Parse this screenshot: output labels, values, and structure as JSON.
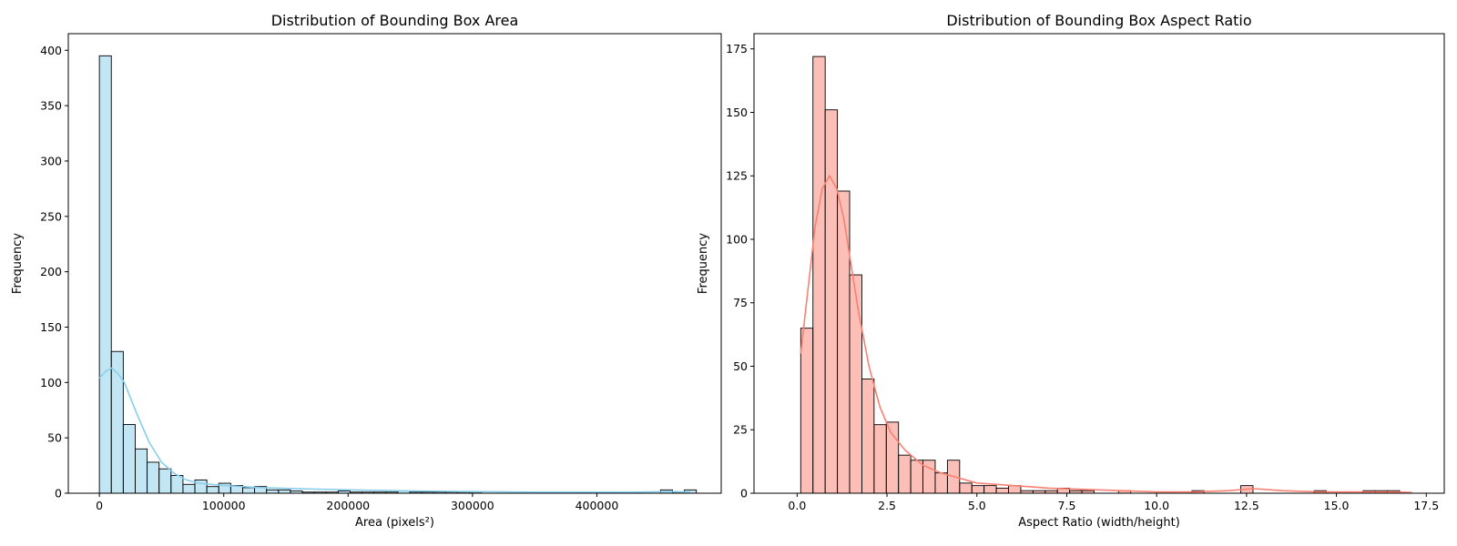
{
  "chart_data": [
    {
      "type": "histogram",
      "title": "Distribution of Bounding Box Area",
      "xlabel": "Area (pixels²)",
      "ylabel": "Frequency",
      "xlim": [
        -25000,
        500000
      ],
      "ylim": [
        0,
        415
      ],
      "xticks": [
        0,
        100000,
        200000,
        300000,
        400000
      ],
      "xtick_labels": [
        "0",
        "100000",
        "200000",
        "300000",
        "400000"
      ],
      "yticks": [
        0,
        50,
        100,
        150,
        200,
        250,
        300,
        350,
        400
      ],
      "ytick_labels": [
        "0",
        "50",
        "100",
        "150",
        "200",
        "250",
        "300",
        "350",
        "400"
      ],
      "bar_color": "#87ceeb",
      "kde_color": "#87ceeb",
      "bin_edges": [
        0,
        9600,
        19200,
        28800,
        38400,
        48000,
        57600,
        67200,
        76800,
        86400,
        96000,
        105600,
        115200,
        124800,
        134400,
        144000,
        153600,
        163200,
        172800,
        182400,
        192000,
        201600,
        211200,
        220800,
        230400,
        240000,
        249600,
        259200,
        268800,
        278400,
        288000,
        297600,
        307200,
        316800,
        326400,
        336000,
        345600,
        355200,
        364800,
        374400,
        384000,
        393600,
        403200,
        412800,
        422400,
        432000,
        441600,
        451200,
        460800,
        470400,
        480000
      ],
      "counts": [
        395,
        128,
        62,
        40,
        28,
        22,
        16,
        8,
        12,
        6,
        9,
        7,
        5,
        6,
        3,
        3,
        2,
        1,
        1,
        1,
        2,
        1,
        1,
        1,
        1,
        2,
        1,
        1,
        1,
        1,
        1,
        1,
        0,
        0,
        0,
        0,
        0,
        0,
        0,
        1,
        0,
        0,
        0,
        1,
        0,
        0,
        0,
        3,
        1,
        3
      ],
      "kde": {
        "x": [
          0,
          5000,
          10000,
          15000,
          20000,
          30000,
          40000,
          50000,
          60000,
          70000,
          80000,
          100000,
          130000,
          160000,
          200000,
          250000,
          300000,
          350000,
          400000,
          430000,
          460000,
          475000
        ],
        "y": [
          104,
          110,
          113,
          108,
          100,
          72,
          46,
          28,
          18,
          12,
          9,
          7,
          5,
          4,
          3,
          2,
          1.5,
          1,
          1,
          1,
          1.5,
          1
        ]
      }
    },
    {
      "type": "histogram",
      "title": "Distribution of Bounding Box Aspect Ratio",
      "xlabel": "Aspect Ratio (width/height)",
      "ylabel": "Frequency",
      "xlim": [
        -1.2,
        18.0
      ],
      "ylim": [
        0,
        181
      ],
      "xticks": [
        0,
        2.5,
        5,
        7.5,
        10,
        12.5,
        15,
        17.5
      ],
      "xtick_labels": [
        "0.0",
        "2.5",
        "5.0",
        "7.5",
        "10.0",
        "12.5",
        "15.0",
        "17.5"
      ],
      "yticks": [
        0,
        25,
        50,
        75,
        100,
        125,
        150,
        175
      ],
      "ytick_labels": [
        "0",
        "25",
        "50",
        "75",
        "100",
        "125",
        "150",
        "175"
      ],
      "bar_color": "#fa8072",
      "kde_color": "#fa8072",
      "bin_edges": [
        0.1,
        0.44,
        0.78,
        1.12,
        1.46,
        1.8,
        2.14,
        2.48,
        2.82,
        3.16,
        3.5,
        3.84,
        4.18,
        4.52,
        4.86,
        5.2,
        5.54,
        5.88,
        6.22,
        6.56,
        6.9,
        7.24,
        7.58,
        7.92,
        8.26,
        8.6,
        8.94,
        9.28,
        9.62,
        9.96,
        10.3,
        10.64,
        10.98,
        11.32,
        11.66,
        12.0,
        12.34,
        12.68,
        13.02,
        13.36,
        13.7,
        14.04,
        14.38,
        14.72,
        15.06,
        15.4,
        15.74,
        16.08,
        16.42,
        16.76,
        17.1
      ],
      "counts": [
        65,
        172,
        151,
        119,
        86,
        45,
        27,
        28,
        15,
        13,
        13,
        8,
        13,
        4,
        3,
        3,
        2,
        3,
        1,
        1,
        1,
        2,
        1,
        1,
        0,
        0,
        1,
        0,
        0,
        0,
        0,
        0,
        1,
        0,
        0,
        0,
        3,
        0,
        0,
        0,
        0,
        0,
        1,
        0,
        0,
        0,
        1,
        1,
        1,
        0
      ],
      "kde": {
        "x": [
          0.1,
          0.3,
          0.5,
          0.7,
          0.9,
          1.1,
          1.3,
          1.5,
          1.7,
          2.0,
          2.3,
          2.6,
          3.0,
          3.5,
          4.0,
          4.5,
          5.0,
          6.0,
          7.0,
          8.0,
          9.0,
          10.0,
          11.0,
          12.0,
          12.7,
          13.5,
          14.5,
          15.5,
          16.5,
          17.1
        ],
        "y": [
          55,
          80,
          105,
          120,
          125,
          120,
          108,
          90,
          72,
          50,
          34,
          24,
          17,
          11,
          8,
          6,
          4,
          3,
          2,
          1.5,
          1,
          0.5,
          0.5,
          1,
          1.8,
          1,
          0.5,
          0.5,
          0.5,
          0.3
        ]
      }
    }
  ]
}
